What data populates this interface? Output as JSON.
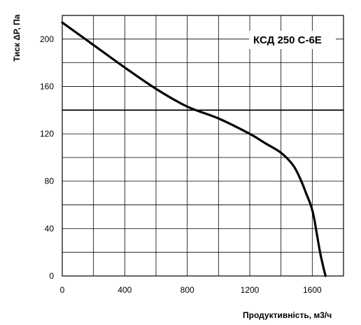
{
  "chart_data": {
    "type": "line",
    "title": "",
    "annotation": "КСД 250 С-6Е",
    "xlabel": "Продуктивність, м3/ч",
    "ylabel": "Тиск ΔP, Па",
    "xlim": [
      0,
      1800
    ],
    "ylim": [
      0,
      220
    ],
    "xticks": [
      0,
      400,
      800,
      1200,
      1600
    ],
    "yticks": [
      0,
      40,
      80,
      120,
      160,
      200
    ],
    "x_grid_step": 200,
    "y_grid_step": 20,
    "grid": true,
    "reference_line": {
      "y": 140
    },
    "series": [
      {
        "name": "",
        "x": [
          0,
          200,
          400,
          600,
          800,
          1000,
          1200,
          1300,
          1400,
          1480,
          1530,
          1560,
          1590,
          1610,
          1630,
          1650,
          1670,
          1685
        ],
        "y": [
          214,
          195,
          176,
          158,
          143,
          133,
          120,
          112,
          104,
          93,
          80,
          70,
          60,
          50,
          35,
          20,
          8,
          0
        ]
      }
    ]
  }
}
